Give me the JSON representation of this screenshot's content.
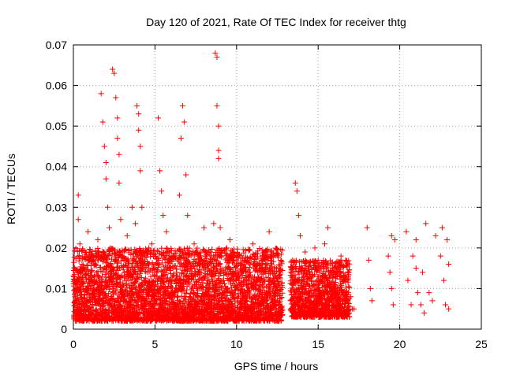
{
  "chart_data": {
    "type": "scatter",
    "title": "Day 120 of 2021, Rate Of TEC Index for receiver thtg",
    "xlabel": "GPS time / hours",
    "ylabel": "ROTI / TECUs",
    "xlim": [
      0,
      25
    ],
    "ylim": [
      0,
      0.07
    ],
    "x_ticks": [
      "0",
      "5",
      "10",
      "15",
      "20",
      "25"
    ],
    "y_ticks": [
      "0",
      "0.01",
      "0.02",
      "0.03",
      "0.04",
      "0.05",
      "0.06",
      "0.07"
    ],
    "x_tick_values": [
      0,
      5,
      10,
      15,
      20,
      25
    ],
    "y_tick_values": [
      0,
      0.01,
      0.02,
      0.03,
      0.04,
      0.05,
      0.06,
      0.07
    ],
    "grid": true,
    "marker": "+",
    "marker_color": "#ff0000",
    "grid_color": "#a0a0a0",
    "series": [
      {
        "points": [
          [
            0.1,
            0.008
          ],
          [
            0.2,
            0.012
          ],
          [
            0.3,
            0.027
          ],
          [
            0.3,
            0.033
          ],
          [
            0.4,
            0.021
          ],
          [
            0.5,
            0.006
          ],
          [
            0.6,
            0.015
          ],
          [
            0.8,
            0.01
          ],
          [
            0.9,
            0.024
          ],
          [
            1.0,
            0.007
          ],
          [
            1.2,
            0.018
          ],
          [
            1.3,
            0.011
          ],
          [
            1.5,
            0.022
          ],
          [
            1.6,
            0.009
          ],
          [
            1.7,
            0.058
          ],
          [
            1.8,
            0.051
          ],
          [
            1.9,
            0.045
          ],
          [
            2.0,
            0.041
          ],
          [
            2.0,
            0.037
          ],
          [
            2.1,
            0.03
          ],
          [
            2.2,
            0.025
          ],
          [
            2.3,
            0.013
          ],
          [
            2.4,
            0.064
          ],
          [
            2.5,
            0.063
          ],
          [
            2.6,
            0.057
          ],
          [
            2.7,
            0.052
          ],
          [
            2.7,
            0.047
          ],
          [
            2.8,
            0.043
          ],
          [
            2.8,
            0.036
          ],
          [
            2.9,
            0.027
          ],
          [
            3.0,
            0.019
          ],
          [
            3.1,
            0.008
          ],
          [
            3.3,
            0.023
          ],
          [
            3.4,
            0.012
          ],
          [
            3.6,
            0.03
          ],
          [
            3.8,
            0.026
          ],
          [
            3.9,
            0.055
          ],
          [
            4.0,
            0.053
          ],
          [
            4.0,
            0.049
          ],
          [
            4.1,
            0.045
          ],
          [
            4.1,
            0.039
          ],
          [
            4.2,
            0.03
          ],
          [
            4.4,
            0.016
          ],
          [
            4.6,
            0.009
          ],
          [
            4.8,
            0.021
          ],
          [
            5.0,
            0.013
          ],
          [
            5.2,
            0.052
          ],
          [
            5.3,
            0.039
          ],
          [
            5.4,
            0.034
          ],
          [
            5.5,
            0.028
          ],
          [
            5.7,
            0.024
          ],
          [
            5.9,
            0.012
          ],
          [
            6.0,
            0.018
          ],
          [
            6.3,
            0.01
          ],
          [
            6.5,
            0.033
          ],
          [
            6.6,
            0.047
          ],
          [
            6.7,
            0.055
          ],
          [
            6.8,
            0.051
          ],
          [
            6.9,
            0.038
          ],
          [
            7.0,
            0.028
          ],
          [
            7.2,
            0.015
          ],
          [
            7.4,
            0.021
          ],
          [
            7.6,
            0.008
          ],
          [
            7.8,
            0.017
          ],
          [
            8.0,
            0.025
          ],
          [
            8.2,
            0.012
          ],
          [
            8.4,
            0.019
          ],
          [
            8.6,
            0.026
          ],
          [
            8.7,
            0.068
          ],
          [
            8.8,
            0.067
          ],
          [
            8.8,
            0.055
          ],
          [
            8.9,
            0.05
          ],
          [
            8.9,
            0.044
          ],
          [
            8.9,
            0.042
          ],
          [
            9.0,
            0.025
          ],
          [
            9.2,
            0.014
          ],
          [
            9.4,
            0.02
          ],
          [
            9.6,
            0.022
          ],
          [
            9.8,
            0.009
          ],
          [
            10.0,
            0.018
          ],
          [
            10.2,
            0.011
          ],
          [
            10.4,
            0.016
          ],
          [
            10.6,
            0.007
          ],
          [
            10.8,
            0.014
          ],
          [
            11.0,
            0.021
          ],
          [
            11.2,
            0.01
          ],
          [
            11.4,
            0.015
          ],
          [
            11.6,
            0.018
          ],
          [
            11.8,
            0.008
          ],
          [
            12.0,
            0.024
          ],
          [
            12.1,
            0.019
          ],
          [
            12.2,
            0.012
          ],
          [
            12.4,
            0.009
          ],
          [
            12.6,
            0.006
          ],
          [
            12.7,
            0.005
          ],
          [
            13.4,
            0.011
          ],
          [
            13.5,
            0.008
          ],
          [
            13.6,
            0.036
          ],
          [
            13.7,
            0.034
          ],
          [
            13.8,
            0.028
          ],
          [
            13.9,
            0.023
          ],
          [
            14.0,
            0.015
          ],
          [
            14.2,
            0.019
          ],
          [
            14.4,
            0.007
          ],
          [
            14.6,
            0.012
          ],
          [
            14.8,
            0.02
          ],
          [
            15.0,
            0.017
          ],
          [
            15.2,
            0.009
          ],
          [
            15.4,
            0.021
          ],
          [
            15.6,
            0.025
          ],
          [
            15.8,
            0.013
          ],
          [
            16.0,
            0.01
          ],
          [
            16.2,
            0.015
          ],
          [
            16.4,
            0.018
          ],
          [
            16.6,
            0.012
          ],
          [
            16.7,
            0.008
          ],
          [
            17.0,
            0.008
          ],
          [
            17.1,
            0.005
          ],
          [
            17.2,
            0.005
          ],
          [
            18.0,
            0.025
          ],
          [
            18.1,
            0.017
          ],
          [
            18.2,
            0.01
          ],
          [
            18.3,
            0.007
          ],
          [
            19.3,
            0.018
          ],
          [
            19.4,
            0.014
          ],
          [
            19.5,
            0.01
          ],
          [
            19.5,
            0.023
          ],
          [
            19.6,
            0.006
          ],
          [
            19.7,
            0.022
          ],
          [
            20.4,
            0.024
          ],
          [
            20.5,
            0.012
          ],
          [
            20.7,
            0.006
          ],
          [
            20.8,
            0.018
          ],
          [
            21.0,
            0.015
          ],
          [
            21.0,
            0.022
          ],
          [
            21.1,
            0.009
          ],
          [
            21.3,
            0.006
          ],
          [
            21.4,
            0.014
          ],
          [
            21.5,
            0.004
          ],
          [
            21.6,
            0.026
          ],
          [
            21.8,
            0.009
          ],
          [
            22.0,
            0.007
          ],
          [
            22.2,
            0.023
          ],
          [
            22.5,
            0.018
          ],
          [
            22.6,
            0.025
          ],
          [
            22.7,
            0.012
          ],
          [
            22.8,
            0.006
          ],
          [
            22.9,
            0.022
          ],
          [
            23.0,
            0.016
          ],
          [
            23.0,
            0.005
          ]
        ]
      }
    ],
    "dense_bands": [
      {
        "x_from": 0.0,
        "x_to": 12.8,
        "y_low": 0.002,
        "y_high": 0.02
      },
      {
        "x_from": 13.3,
        "x_to": 16.9,
        "y_low": 0.003,
        "y_high": 0.017
      }
    ]
  }
}
